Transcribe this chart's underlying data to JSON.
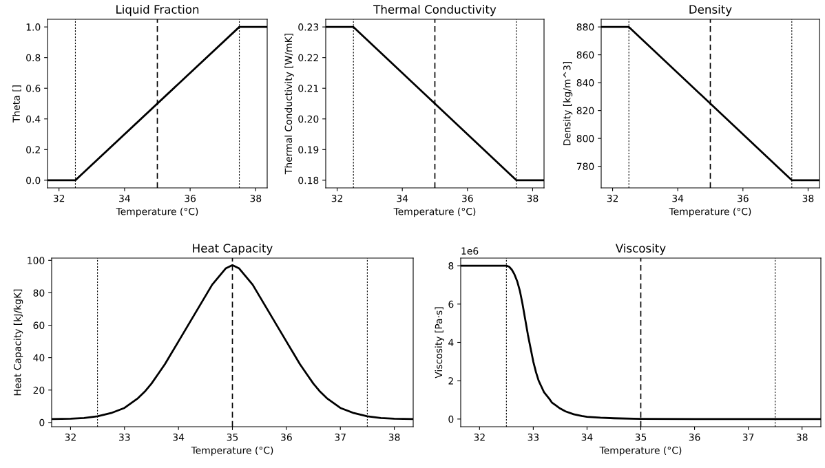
{
  "chart_data": [
    {
      "type": "line",
      "title": "Liquid Fraction",
      "xlabel": "Temperature (°C)",
      "ylabel": "Theta []",
      "x": [
        31.65,
        32.5,
        37.5,
        38.35
      ],
      "series": [
        {
          "color": "#000000",
          "values": [
            0,
            0,
            1,
            1
          ]
        }
      ],
      "xlim": [
        31.65,
        38.35
      ],
      "ylim": [
        -0.05,
        1.05
      ],
      "xticks": [
        32,
        34,
        36,
        38
      ],
      "yticks": [
        {
          "value": 0,
          "label": "0.0"
        },
        0.2,
        0.4,
        0.6,
        0.8,
        {
          "value": 1,
          "label": "1.0"
        }
      ],
      "ref_lines": [
        {
          "axis": "x",
          "value": 32.5,
          "line_style": "dotted"
        },
        {
          "axis": "x",
          "value": 35,
          "line_style": "dashed"
        },
        {
          "axis": "x",
          "value": 37.5,
          "line_style": "dotted"
        }
      ],
      "grid": false
    },
    {
      "type": "line",
      "title": "Thermal Conductivity",
      "xlabel": "Temperature (°C)",
      "ylabel": "Thermal Conductivity [W/mK]",
      "x": [
        31.65,
        32.5,
        37.5,
        38.35
      ],
      "series": [
        {
          "color": "#000000",
          "values": [
            0.23,
            0.23,
            0.18,
            0.18
          ]
        }
      ],
      "xlim": [
        31.65,
        38.35
      ],
      "ylim": [
        0.1775,
        0.2325
      ],
      "xticks": [
        32,
        34,
        36,
        38
      ],
      "yticks": [
        {
          "value": 0.18,
          "label": "0.18"
        },
        {
          "value": 0.19,
          "label": "0.19"
        },
        {
          "value": 0.2,
          "label": "0.20"
        },
        {
          "value": 0.21,
          "label": "0.21"
        },
        {
          "value": 0.22,
          "label": "0.22"
        },
        {
          "value": 0.23,
          "label": "0.23"
        }
      ],
      "ref_lines": [
        {
          "axis": "x",
          "value": 32.5,
          "line_style": "dotted"
        },
        {
          "axis": "x",
          "value": 35,
          "line_style": "dashed"
        },
        {
          "axis": "x",
          "value": 37.5,
          "line_style": "dotted"
        }
      ],
      "grid": false
    },
    {
      "type": "line",
      "title": "Density",
      "xlabel": "Temperature (°C)",
      "ylabel": "Density [kg/m^3]",
      "x": [
        31.65,
        32.5,
        37.5,
        38.35
      ],
      "series": [
        {
          "color": "#000000",
          "values": [
            880,
            880,
            770,
            770
          ]
        }
      ],
      "xlim": [
        31.65,
        38.35
      ],
      "ylim": [
        764.5,
        885.5
      ],
      "xticks": [
        32,
        34,
        36,
        38
      ],
      "yticks": [
        780,
        800,
        820,
        840,
        860,
        880
      ],
      "ref_lines": [
        {
          "axis": "x",
          "value": 32.5,
          "line_style": "dotted"
        },
        {
          "axis": "x",
          "value": 35,
          "line_style": "dashed"
        },
        {
          "axis": "x",
          "value": 37.5,
          "line_style": "dotted"
        }
      ],
      "grid": false
    },
    {
      "type": "line",
      "title": "Heat Capacity",
      "xlabel": "Temperature (°C)",
      "ylabel": "Heat Capacity [kJ/kgK]",
      "x": [
        31.65,
        32,
        32.25,
        32.5,
        32.75,
        33,
        33.125,
        33.25,
        33.375,
        33.5,
        33.625,
        33.75,
        33.875,
        34,
        34.125,
        34.25,
        34.375,
        34.5,
        34.625,
        34.75,
        34.875,
        35,
        35.125,
        35.25,
        35.375,
        35.5,
        35.625,
        35.75,
        35.875,
        36,
        36.125,
        36.25,
        36.375,
        36.5,
        36.625,
        36.75,
        36.875,
        37,
        37.25,
        37.5,
        37.75,
        38,
        38.35
      ],
      "series": [
        {
          "color": "#000000",
          "values": [
            2.1,
            2.3,
            2.8,
            3.8,
            5.8,
            9,
            12,
            15,
            19,
            24,
            30,
            36,
            43,
            50,
            57,
            64,
            71,
            78,
            85,
            90,
            95,
            97,
            95,
            90,
            85,
            78,
            71,
            64,
            57,
            50,
            43,
            36,
            30,
            24,
            19,
            15,
            12,
            9,
            5.8,
            3.8,
            2.8,
            2.3,
            2.1
          ]
        }
      ],
      "xlim": [
        31.65,
        38.35
      ],
      "ylim": [
        -2.6,
        101.4
      ],
      "xticks": [
        32,
        33,
        34,
        35,
        36,
        37,
        38
      ],
      "yticks": [
        0,
        20,
        40,
        60,
        80,
        100
      ],
      "ref_lines": [
        {
          "axis": "x",
          "value": 32.5,
          "line_style": "dotted"
        },
        {
          "axis": "x",
          "value": 35,
          "line_style": "dashed"
        },
        {
          "axis": "x",
          "value": 37.5,
          "line_style": "dotted"
        }
      ],
      "grid": false
    },
    {
      "type": "line",
      "title": "Viscosity",
      "xlabel": "Temperature (°C)",
      "ylabel": "Viscosity [Pa·s]",
      "annotations": [
        "1e6"
      ],
      "x": [
        31.65,
        32.5,
        32.55,
        32.6,
        32.65,
        32.7,
        32.75,
        32.8,
        32.85,
        32.9,
        32.95,
        33,
        33.05,
        33.1,
        33.15,
        33.2,
        33.3,
        33.35,
        33.4,
        33.5,
        33.6,
        33.75,
        33.9,
        34,
        34.25,
        34.5,
        35,
        36,
        38.35
      ],
      "series": [
        {
          "color": "#000000",
          "values": [
            8,
            8,
            7.95,
            7.8,
            7.55,
            7.2,
            6.7,
            6,
            5.2,
            4.4,
            3.7,
            3,
            2.45,
            2,
            1.7,
            1.4,
            1.05,
            0.85,
            0.75,
            0.55,
            0.4,
            0.25,
            0.16,
            0.12,
            0.07,
            0.04,
            0.01,
            0,
            0
          ]
        }
      ],
      "xlim": [
        31.65,
        38.35
      ],
      "ylim": [
        -0.4,
        8.4
      ],
      "xticks": [
        32,
        33,
        34,
        35,
        36,
        37,
        38
      ],
      "yticks": [
        0,
        2,
        4,
        6,
        8
      ],
      "ref_lines": [
        {
          "axis": "x",
          "value": 32.5,
          "line_style": "dotted"
        },
        {
          "axis": "x",
          "value": 35,
          "line_style": "dashed"
        },
        {
          "axis": "x",
          "value": 37.5,
          "line_style": "dotted"
        }
      ],
      "grid": false
    }
  ]
}
